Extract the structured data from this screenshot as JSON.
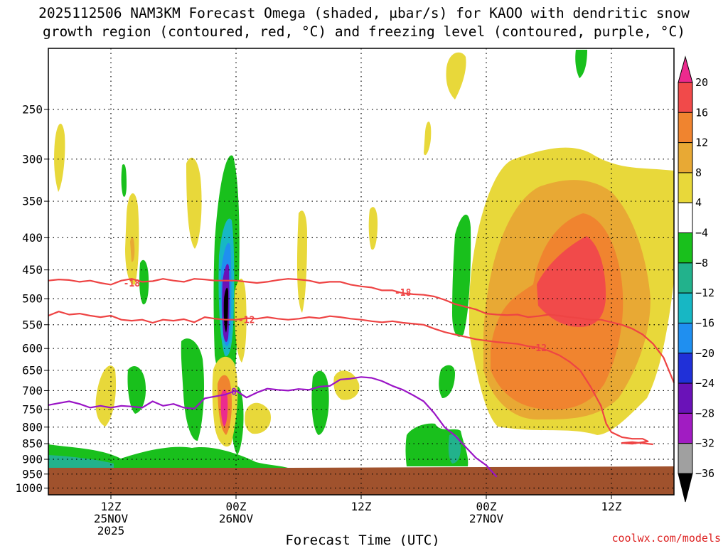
{
  "chart_data": {
    "type": "heatmap",
    "title_line1": "2025112506 NAM3KM Forecast Omega (shaded, µbar/s) for KAOO with dendritic snow",
    "title_line2": "growth region (contoured, red, °C) and freezing level (contoured, purple, °C)",
    "xlabel": "Forecast Time (UTC)",
    "ylabel": "",
    "watermark": "coolwx.com/models",
    "x_ticks": [
      {
        "hour": 18,
        "line1": "12Z",
        "line2": "25NOV",
        "line3": "2025"
      },
      {
        "hour": 30,
        "line1": "00Z",
        "line2": "26NOV",
        "line3": ""
      },
      {
        "hour": 42,
        "line1": "12Z",
        "line2": "",
        "line3": ""
      },
      {
        "hour": 54,
        "line1": "00Z",
        "line2": "27NOV",
        "line3": ""
      },
      {
        "hour": 66,
        "line1": "12Z",
        "line2": "",
        "line3": ""
      }
    ],
    "xlim_hours": [
      12,
      72
    ],
    "y_ticks": [
      250,
      300,
      350,
      400,
      450,
      500,
      550,
      600,
      650,
      700,
      750,
      800,
      850,
      900,
      950,
      1000
    ],
    "ylim_hPa": [
      1025,
      200
    ],
    "grid": true,
    "colorbar": {
      "levels": [
        20,
        16,
        12,
        8,
        4,
        -4,
        -8,
        -12,
        -16,
        -20,
        -24,
        -28,
        -32,
        -36
      ],
      "colors": [
        "#ec2a8e",
        "#f14a4a",
        "#f0842f",
        "#e8a934",
        "#e8d83a",
        "#ffffff",
        "#19c01c",
        "#22b28c",
        "#17b7c4",
        "#1f8ff0",
        "#2030d8",
        "#6a12b8",
        "#a11cc2",
        "#a0a0a0",
        "#000000"
      ]
    },
    "contours": [
      {
        "name": "snow-growth -18",
        "label": "-18",
        "color": "#ee4444",
        "points": [
          [
            12,
            468
          ],
          [
            13,
            466
          ],
          [
            14,
            467
          ],
          [
            15,
            470
          ],
          [
            16,
            468
          ],
          [
            17,
            472
          ],
          [
            18,
            475
          ],
          [
            19,
            468
          ],
          [
            20,
            465
          ],
          [
            21,
            470
          ],
          [
            22,
            469
          ],
          [
            23,
            465
          ],
          [
            24,
            468
          ],
          [
            25,
            470
          ],
          [
            26,
            465
          ],
          [
            27,
            466
          ],
          [
            28,
            468
          ],
          [
            29,
            468
          ],
          [
            30,
            468
          ],
          [
            31,
            470
          ],
          [
            32,
            472
          ],
          [
            33,
            470
          ],
          [
            34,
            467
          ],
          [
            35,
            465
          ],
          [
            36,
            466
          ],
          [
            37,
            468
          ],
          [
            38,
            472
          ],
          [
            39,
            470
          ],
          [
            40,
            470
          ],
          [
            41,
            475
          ],
          [
            42,
            478
          ],
          [
            43,
            480
          ],
          [
            44,
            485
          ],
          [
            45,
            485
          ],
          [
            46,
            490
          ],
          [
            47,
            492
          ],
          [
            48,
            493
          ],
          [
            49,
            496
          ],
          [
            50,
            502
          ],
          [
            51,
            510
          ],
          [
            52,
            515
          ],
          [
            53,
            520
          ],
          [
            54,
            528
          ],
          [
            55,
            530
          ],
          [
            56,
            531
          ],
          [
            57,
            530
          ],
          [
            58,
            535
          ],
          [
            59,
            533
          ],
          [
            60,
            530
          ],
          [
            61,
            532
          ],
          [
            62,
            535
          ],
          [
            63,
            537
          ],
          [
            64,
            540
          ],
          [
            65,
            540
          ],
          [
            66,
            545
          ],
          [
            67,
            550
          ],
          [
            68,
            558
          ],
          [
            69,
            570
          ],
          [
            70,
            590
          ],
          [
            71,
            620
          ],
          [
            72,
            680
          ]
        ]
      },
      {
        "name": "snow-growth -12",
        "label": "-12",
        "color": "#ee4444",
        "points": [
          [
            12,
            532
          ],
          [
            13,
            524
          ],
          [
            14,
            530
          ],
          [
            15,
            528
          ],
          [
            16,
            532
          ],
          [
            17,
            535
          ],
          [
            18,
            532
          ],
          [
            19,
            540
          ],
          [
            20,
            542
          ],
          [
            21,
            540
          ],
          [
            22,
            546
          ],
          [
            23,
            540
          ],
          [
            24,
            542
          ],
          [
            25,
            539
          ],
          [
            26,
            545
          ],
          [
            27,
            535
          ],
          [
            28,
            538
          ],
          [
            29,
            540
          ],
          [
            30,
            540
          ],
          [
            31,
            537
          ],
          [
            32,
            538
          ],
          [
            33,
            535
          ],
          [
            34,
            538
          ],
          [
            35,
            540
          ],
          [
            36,
            538
          ],
          [
            37,
            535
          ],
          [
            38,
            537
          ],
          [
            39,
            533
          ],
          [
            40,
            535
          ],
          [
            41,
            538
          ],
          [
            42,
            540
          ],
          [
            43,
            543
          ],
          [
            44,
            545
          ],
          [
            45,
            543
          ],
          [
            46,
            546
          ],
          [
            47,
            548
          ],
          [
            48,
            550
          ],
          [
            49,
            558
          ],
          [
            50,
            565
          ],
          [
            51,
            570
          ],
          [
            52,
            575
          ],
          [
            53,
            580
          ],
          [
            54,
            583
          ],
          [
            55,
            586
          ],
          [
            56,
            588
          ],
          [
            57,
            590
          ],
          [
            58,
            595
          ],
          [
            59,
            598
          ],
          [
            60,
            605
          ],
          [
            61,
            615
          ],
          [
            62,
            630
          ],
          [
            63,
            650
          ],
          [
            64,
            690
          ],
          [
            65,
            740
          ],
          [
            65.5,
            790
          ],
          [
            66,
            815
          ],
          [
            67,
            830
          ],
          [
            68,
            835
          ],
          [
            69,
            835
          ],
          [
            69.5,
            843
          ],
          [
            68,
            850
          ],
          [
            67,
            848
          ],
          [
            68,
            845
          ],
          [
            70,
            852
          ]
        ]
      },
      {
        "name": "freezing-level 0",
        "label": "0",
        "color": "#9a14c6",
        "points": [
          [
            12,
            738
          ],
          [
            13,
            733
          ],
          [
            14,
            728
          ],
          [
            15,
            735
          ],
          [
            16,
            745
          ],
          [
            17,
            740
          ],
          [
            18,
            745
          ],
          [
            19,
            740
          ],
          [
            20,
            742
          ],
          [
            21,
            745
          ],
          [
            22,
            728
          ],
          [
            23,
            740
          ],
          [
            24,
            735
          ],
          [
            25,
            745
          ],
          [
            26,
            748
          ],
          [
            27,
            720
          ],
          [
            28,
            715
          ],
          [
            29,
            710
          ],
          [
            30,
            700
          ],
          [
            31,
            718
          ],
          [
            32,
            705
          ],
          [
            33,
            695
          ],
          [
            34,
            698
          ],
          [
            35,
            700
          ],
          [
            36,
            696
          ],
          [
            37,
            698
          ],
          [
            38,
            690
          ],
          [
            39,
            688
          ],
          [
            40,
            672
          ],
          [
            41,
            670
          ],
          [
            42,
            666
          ],
          [
            43,
            668
          ],
          [
            44,
            676
          ],
          [
            45,
            688
          ],
          [
            46,
            698
          ],
          [
            47,
            712
          ],
          [
            48,
            728
          ],
          [
            49,
            760
          ],
          [
            50,
            800
          ],
          [
            51,
            825
          ],
          [
            52,
            860
          ],
          [
            53,
            895
          ],
          [
            54,
            920
          ],
          [
            55,
            960
          ]
        ]
      }
    ]
  }
}
